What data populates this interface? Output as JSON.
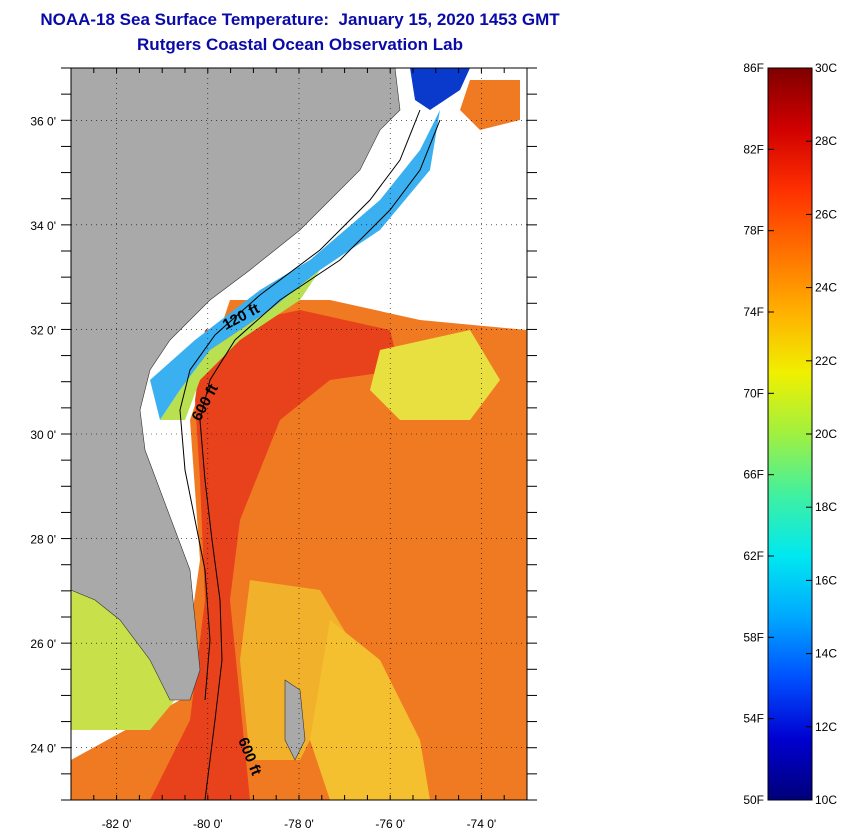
{
  "title": {
    "line1": "NOAA-18 Sea Surface Temperature:  January 15, 2020 1453 GMT",
    "line2": "Rutgers Coastal Ocean Observation Lab"
  },
  "map": {
    "lon_range": [
      -83,
      -73
    ],
    "lat_range": [
      23,
      37
    ],
    "lon_ticks": [
      {
        "value": -82,
        "label": "-82 0'"
      },
      {
        "value": -80,
        "label": "-80 0'"
      },
      {
        "value": -78,
        "label": "-78 0'"
      },
      {
        "value": -76,
        "label": "-76 0'"
      },
      {
        "value": -74,
        "label": "-74 0'"
      }
    ],
    "lat_ticks": [
      {
        "value": 24,
        "label": "24 0'"
      },
      {
        "value": 26,
        "label": "26 0'"
      },
      {
        "value": 28,
        "label": "28 0'"
      },
      {
        "value": 30,
        "label": "30 0'"
      },
      {
        "value": 32,
        "label": "32 0'"
      },
      {
        "value": 34,
        "label": "34 0'"
      },
      {
        "value": 36,
        "label": "36 0'"
      }
    ],
    "contour_labels": [
      "120 ft",
      "600 ft",
      "600 ft"
    ],
    "colors": {
      "land": "#a9a9a9",
      "cloud": "#ffffff",
      "warm": "#f06a1c",
      "hot": "#e8361a",
      "mid": "#f2b12a",
      "cool": "#c8e04a",
      "cold": "#3aa9f0",
      "colder": "#0a3acc"
    }
  },
  "colorbar": {
    "fahrenheit_labels": [
      "86F",
      "82F",
      "78F",
      "74F",
      "70F",
      "66F",
      "62F",
      "58F",
      "54F",
      "50F"
    ],
    "celsius_labels": [
      "30C",
      "28C",
      "26C",
      "24C",
      "22C",
      "20C",
      "18C",
      "16C",
      "14C",
      "12C",
      "10C"
    ],
    "range_c": [
      10,
      30
    ],
    "gradient": [
      "#00007a",
      "#0000d0",
      "#0050ff",
      "#00a8ff",
      "#00e8f0",
      "#40f0a0",
      "#a0f040",
      "#f0f000",
      "#ffb000",
      "#ff7000",
      "#ff3000",
      "#d00000",
      "#800000"
    ]
  }
}
